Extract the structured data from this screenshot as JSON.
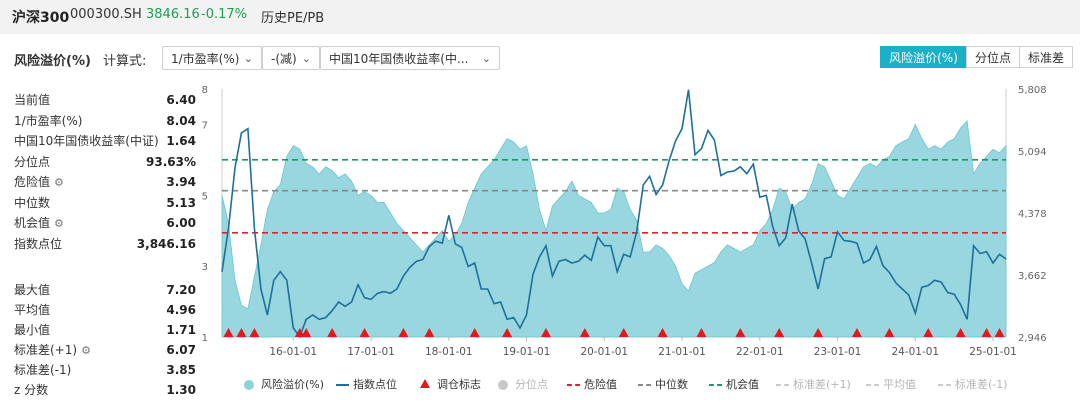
{
  "header": {
    "name": "沪深300",
    "code": "000300.SH",
    "price": "3846.16",
    "change": "-0.17%",
    "pepb_tab": "历史PE/PB"
  },
  "controls": {
    "metric_label": "风险溢价(%)",
    "formula_label": "计算式:",
    "select1": "1/市盈率(%)",
    "select2": "-(减)",
    "select3": "中国10年国债收益率(中...",
    "tabs": [
      "风险溢价(%)",
      "分位点",
      "标准差"
    ],
    "active_tab": 0
  },
  "stats_top": [
    {
      "label": "当前值",
      "value": "6.40",
      "gear": false
    },
    {
      "label": "1/市盈率(%)",
      "value": "8.04",
      "gear": false
    },
    {
      "label": "中国10年国债收益率(中证)",
      "value": "1.64",
      "gear": false
    },
    {
      "label": "分位点",
      "value": "93.63%",
      "gear": false
    },
    {
      "label": "危险值",
      "value": "3.94",
      "gear": true
    },
    {
      "label": "中位数",
      "value": "5.13",
      "gear": false
    },
    {
      "label": "机会值",
      "value": "6.00",
      "gear": true
    },
    {
      "label": "指数点位",
      "value": "3,846.16",
      "gear": false
    }
  ],
  "stats_bottom": [
    {
      "label": "最大值",
      "value": "7.20",
      "gear": false
    },
    {
      "label": "平均值",
      "value": "4.96",
      "gear": false
    },
    {
      "label": "最小值",
      "value": "1.71",
      "gear": false
    },
    {
      "label": "标准差(+1)",
      "value": "6.07",
      "gear": true
    },
    {
      "label": "标准差(-1)",
      "value": "3.85",
      "gear": false
    },
    {
      "label": "z 分数",
      "value": "1.30",
      "gear": false
    }
  ],
  "chart_data": {
    "type": "area",
    "x_start": "2015-02",
    "x_end": "2025-03",
    "x_ticks": [
      "16-01-01",
      "17-01-01",
      "18-01-01",
      "19-01-01",
      "20-01-01",
      "21-01-01",
      "22-01-01",
      "23-01-01",
      "24-01-01",
      "25-01-01"
    ],
    "y_left": {
      "min": 1,
      "max": 8,
      "ticks": [
        "1",
        "3",
        "5",
        "7",
        "8"
      ]
    },
    "y_right": {
      "min": 2946,
      "max": 5808,
      "ticks": [
        "2,946",
        "3,662",
        "4,378",
        "5,094",
        "5,808"
      ]
    },
    "reference_lines": {
      "danger": 3.94,
      "median": 5.13,
      "opportunity": 6.0
    },
    "series": [
      {
        "name": "风险溢价(%)",
        "axis": "left",
        "color": "#8dd3dc",
        "points": [
          [
            "2015-02",
            5.0
          ],
          [
            "2015-03",
            4.2
          ],
          [
            "2015-04",
            2.6
          ],
          [
            "2015-05",
            1.9
          ],
          [
            "2015-06",
            1.8
          ],
          [
            "2015-07",
            2.7
          ],
          [
            "2015-08",
            3.6
          ],
          [
            "2015-09",
            4.6
          ],
          [
            "2015-10",
            5.1
          ],
          [
            "2015-11",
            5.3
          ],
          [
            "2015-12",
            6.1
          ],
          [
            "2016-01",
            6.4
          ],
          [
            "2016-02",
            6.3
          ],
          [
            "2016-03",
            5.9
          ],
          [
            "2016-04",
            5.8
          ],
          [
            "2016-05",
            5.6
          ],
          [
            "2016-06",
            5.8
          ],
          [
            "2016-07",
            5.7
          ],
          [
            "2016-08",
            5.5
          ],
          [
            "2016-09",
            5.6
          ],
          [
            "2016-10",
            5.4
          ],
          [
            "2016-11",
            5.0
          ],
          [
            "2016-12",
            5.1
          ],
          [
            "2017-01",
            5.0
          ],
          [
            "2017-02",
            4.8
          ],
          [
            "2017-03",
            4.8
          ],
          [
            "2017-04",
            4.5
          ],
          [
            "2017-05",
            4.2
          ],
          [
            "2017-06",
            4.0
          ],
          [
            "2017-07",
            3.8
          ],
          [
            "2017-08",
            3.6
          ],
          [
            "2017-09",
            3.4
          ],
          [
            "2017-10",
            3.6
          ],
          [
            "2017-11",
            3.8
          ],
          [
            "2017-12",
            4.0
          ],
          [
            "2018-01",
            3.7
          ],
          [
            "2018-02",
            3.9
          ],
          [
            "2018-03",
            4.2
          ],
          [
            "2018-04",
            4.8
          ],
          [
            "2018-05",
            5.2
          ],
          [
            "2018-06",
            5.6
          ],
          [
            "2018-07",
            5.8
          ],
          [
            "2018-08",
            6.0
          ],
          [
            "2018-09",
            6.3
          ],
          [
            "2018-10",
            6.6
          ],
          [
            "2018-11",
            6.5
          ],
          [
            "2018-12",
            6.3
          ],
          [
            "2019-01",
            6.4
          ],
          [
            "2019-02",
            5.6
          ],
          [
            "2019-03",
            4.6
          ],
          [
            "2019-04",
            4.0
          ],
          [
            "2019-05",
            4.7
          ],
          [
            "2019-06",
            4.9
          ],
          [
            "2019-07",
            5.1
          ],
          [
            "2019-08",
            5.4
          ],
          [
            "2019-09",
            5.0
          ],
          [
            "2019-10",
            4.9
          ],
          [
            "2019-11",
            4.8
          ],
          [
            "2019-12",
            4.5
          ],
          [
            "2020-01",
            4.5
          ],
          [
            "2020-02",
            4.6
          ],
          [
            "2020-03",
            5.2
          ],
          [
            "2020-04",
            5.1
          ],
          [
            "2020-05",
            4.6
          ],
          [
            "2020-06",
            4.3
          ],
          [
            "2020-07",
            3.4
          ],
          [
            "2020-08",
            3.4
          ],
          [
            "2020-09",
            3.6
          ],
          [
            "2020-10",
            3.5
          ],
          [
            "2020-11",
            3.3
          ],
          [
            "2020-12",
            3.0
          ],
          [
            "2021-01",
            2.5
          ],
          [
            "2021-02",
            2.3
          ],
          [
            "2021-03",
            2.8
          ],
          [
            "2021-04",
            2.9
          ],
          [
            "2021-05",
            3.0
          ],
          [
            "2021-06",
            3.1
          ],
          [
            "2021-07",
            3.4
          ],
          [
            "2021-08",
            3.6
          ],
          [
            "2021-09",
            3.5
          ],
          [
            "2021-10",
            3.4
          ],
          [
            "2021-11",
            3.5
          ],
          [
            "2021-12",
            3.6
          ],
          [
            "2022-01",
            4.0
          ],
          [
            "2022-02",
            4.2
          ],
          [
            "2022-03",
            4.6
          ],
          [
            "2022-04",
            5.2
          ],
          [
            "2022-05",
            5.1
          ],
          [
            "2022-06",
            4.6
          ],
          [
            "2022-07",
            4.8
          ],
          [
            "2022-08",
            4.9
          ],
          [
            "2022-09",
            5.3
          ],
          [
            "2022-10",
            5.9
          ],
          [
            "2022-11",
            5.8
          ],
          [
            "2022-12",
            5.4
          ],
          [
            "2023-01",
            5.0
          ],
          [
            "2023-02",
            4.9
          ],
          [
            "2023-03",
            5.2
          ],
          [
            "2023-04",
            5.5
          ],
          [
            "2023-05",
            5.8
          ],
          [
            "2023-06",
            5.9
          ],
          [
            "2023-07",
            5.8
          ],
          [
            "2023-08",
            6.0
          ],
          [
            "2023-09",
            6.1
          ],
          [
            "2023-10",
            6.4
          ],
          [
            "2023-11",
            6.5
          ],
          [
            "2023-12",
            6.6
          ],
          [
            "2024-01",
            7.0
          ],
          [
            "2024-02",
            6.6
          ],
          [
            "2024-03",
            6.3
          ],
          [
            "2024-04",
            6.4
          ],
          [
            "2024-05",
            6.3
          ],
          [
            "2024-06",
            6.5
          ],
          [
            "2024-07",
            6.6
          ],
          [
            "2024-08",
            6.9
          ],
          [
            "2024-09",
            7.1
          ],
          [
            "2024-10",
            5.6
          ],
          [
            "2024-11",
            5.9
          ],
          [
            "2024-12",
            6.1
          ],
          [
            "2025-01",
            6.3
          ],
          [
            "2025-02",
            6.2
          ],
          [
            "2025-03",
            6.4
          ]
        ]
      },
      {
        "name": "指数点位",
        "axis": "right",
        "color": "#1f6f9c",
        "points": [
          [
            "2015-02",
            3700
          ],
          [
            "2015-03",
            4200
          ],
          [
            "2015-04",
            4900
          ],
          [
            "2015-05",
            5300
          ],
          [
            "2015-06",
            5350
          ],
          [
            "2015-07",
            4200
          ],
          [
            "2015-08",
            3500
          ],
          [
            "2015-09",
            3200
          ],
          [
            "2015-10",
            3600
          ],
          [
            "2015-11",
            3700
          ],
          [
            "2015-12",
            3600
          ],
          [
            "2016-01",
            3050
          ],
          [
            "2016-02",
            2950
          ],
          [
            "2016-03",
            3150
          ],
          [
            "2016-04",
            3200
          ],
          [
            "2016-05",
            3150
          ],
          [
            "2016-06",
            3170
          ],
          [
            "2016-07",
            3250
          ],
          [
            "2016-08",
            3350
          ],
          [
            "2016-09",
            3300
          ],
          [
            "2016-10",
            3350
          ],
          [
            "2016-11",
            3550
          ],
          [
            "2016-12",
            3400
          ],
          [
            "2017-01",
            3380
          ],
          [
            "2017-02",
            3450
          ],
          [
            "2017-03",
            3470
          ],
          [
            "2017-04",
            3450
          ],
          [
            "2017-05",
            3500
          ],
          [
            "2017-06",
            3650
          ],
          [
            "2017-07",
            3750
          ],
          [
            "2017-08",
            3820
          ],
          [
            "2017-09",
            3840
          ],
          [
            "2017-10",
            3990
          ],
          [
            "2017-11",
            4050
          ],
          [
            "2017-12",
            4030
          ],
          [
            "2018-01",
            4350
          ],
          [
            "2018-02",
            4020
          ],
          [
            "2018-03",
            3980
          ],
          [
            "2018-04",
            3760
          ],
          [
            "2018-05",
            3800
          ],
          [
            "2018-06",
            3500
          ],
          [
            "2018-07",
            3500
          ],
          [
            "2018-08",
            3330
          ],
          [
            "2018-09",
            3350
          ],
          [
            "2018-10",
            3150
          ],
          [
            "2018-11",
            3170
          ],
          [
            "2018-12",
            3050
          ],
          [
            "2019-01",
            3200
          ],
          [
            "2019-02",
            3670
          ],
          [
            "2019-03",
            3870
          ],
          [
            "2019-04",
            4000
          ],
          [
            "2019-05",
            3650
          ],
          [
            "2019-06",
            3820
          ],
          [
            "2019-07",
            3840
          ],
          [
            "2019-08",
            3800
          ],
          [
            "2019-09",
            3820
          ],
          [
            "2019-10",
            3890
          ],
          [
            "2019-11",
            3830
          ],
          [
            "2019-12",
            4100
          ],
          [
            "2020-01",
            4000
          ],
          [
            "2020-02",
            4000
          ],
          [
            "2020-03",
            3700
          ],
          [
            "2020-04",
            3900
          ],
          [
            "2020-05",
            3870
          ],
          [
            "2020-06",
            4160
          ],
          [
            "2020-07",
            4700
          ],
          [
            "2020-08",
            4800
          ],
          [
            "2020-09",
            4590
          ],
          [
            "2020-10",
            4700
          ],
          [
            "2020-11",
            4980
          ],
          [
            "2020-12",
            5210
          ],
          [
            "2021-01",
            5350
          ],
          [
            "2021-02",
            5800
          ],
          [
            "2021-03",
            5050
          ],
          [
            "2021-04",
            5120
          ],
          [
            "2021-05",
            5330
          ],
          [
            "2021-06",
            5220
          ],
          [
            "2021-07",
            4810
          ],
          [
            "2021-08",
            4850
          ],
          [
            "2021-09",
            4860
          ],
          [
            "2021-10",
            4910
          ],
          [
            "2021-11",
            4830
          ],
          [
            "2021-12",
            4940
          ],
          [
            "2022-01",
            4560
          ],
          [
            "2022-02",
            4580
          ],
          [
            "2022-03",
            4220
          ],
          [
            "2022-04",
            4000
          ],
          [
            "2022-05",
            4090
          ],
          [
            "2022-06",
            4480
          ],
          [
            "2022-07",
            4170
          ],
          [
            "2022-08",
            4080
          ],
          [
            "2022-09",
            3800
          ],
          [
            "2022-10",
            3500
          ],
          [
            "2022-11",
            3850
          ],
          [
            "2022-12",
            3870
          ],
          [
            "2023-01",
            4160
          ],
          [
            "2023-02",
            4060
          ],
          [
            "2023-03",
            4050
          ],
          [
            "2023-04",
            4030
          ],
          [
            "2023-05",
            3800
          ],
          [
            "2023-06",
            3840
          ],
          [
            "2023-07",
            3990
          ],
          [
            "2023-08",
            3770
          ],
          [
            "2023-09",
            3690
          ],
          [
            "2023-10",
            3570
          ],
          [
            "2023-11",
            3500
          ],
          [
            "2023-12",
            3430
          ],
          [
            "2024-01",
            3220
          ],
          [
            "2024-02",
            3520
          ],
          [
            "2024-03",
            3540
          ],
          [
            "2024-04",
            3600
          ],
          [
            "2024-05",
            3580
          ],
          [
            "2024-06",
            3460
          ],
          [
            "2024-07",
            3440
          ],
          [
            "2024-08",
            3320
          ],
          [
            "2024-09",
            3150
          ],
          [
            "2024-10",
            4000
          ],
          [
            "2024-11",
            3910
          ],
          [
            "2024-12",
            3930
          ],
          [
            "2025-01",
            3800
          ],
          [
            "2025-02",
            3900
          ],
          [
            "2025-03",
            3846
          ]
        ]
      }
    ],
    "rebalance_markers": [
      "2015-03",
      "2015-05",
      "2015-07",
      "2016-02",
      "2016-03",
      "2016-07",
      "2016-12",
      "2017-06",
      "2017-10",
      "2018-05",
      "2018-10",
      "2019-04",
      "2019-10",
      "2020-04",
      "2020-10",
      "2021-04",
      "2021-10",
      "2022-04",
      "2022-10",
      "2023-04",
      "2023-09",
      "2024-03",
      "2024-08",
      "2024-12",
      "2025-02"
    ],
    "legend": [
      {
        "label": "风险溢价(%)",
        "kind": "dot",
        "color": "#8dd3dc",
        "active": true
      },
      {
        "label": "指数点位",
        "kind": "line",
        "color": "#1f6f9c",
        "active": true
      },
      {
        "label": "调仓标志",
        "kind": "triangle",
        "color": "#e0191d",
        "active": true
      },
      {
        "label": "分位点",
        "kind": "dot",
        "color": "#c8c8c8",
        "active": false
      },
      {
        "label": "危险值",
        "kind": "dash",
        "color": "#d9262b",
        "active": true
      },
      {
        "label": "中位数",
        "kind": "dash",
        "color": "#888888",
        "active": true
      },
      {
        "label": "机会值",
        "kind": "dash",
        "color": "#1a9b5c",
        "active": true
      },
      {
        "label": "标准差(+1)",
        "kind": "dash",
        "color": "#c8c8c8",
        "active": false
      },
      {
        "label": "平均值",
        "kind": "dash",
        "color": "#c8c8c8",
        "active": false
      },
      {
        "label": "标准差(-1)",
        "kind": "dash",
        "color": "#c8c8c8",
        "active": false
      }
    ]
  }
}
